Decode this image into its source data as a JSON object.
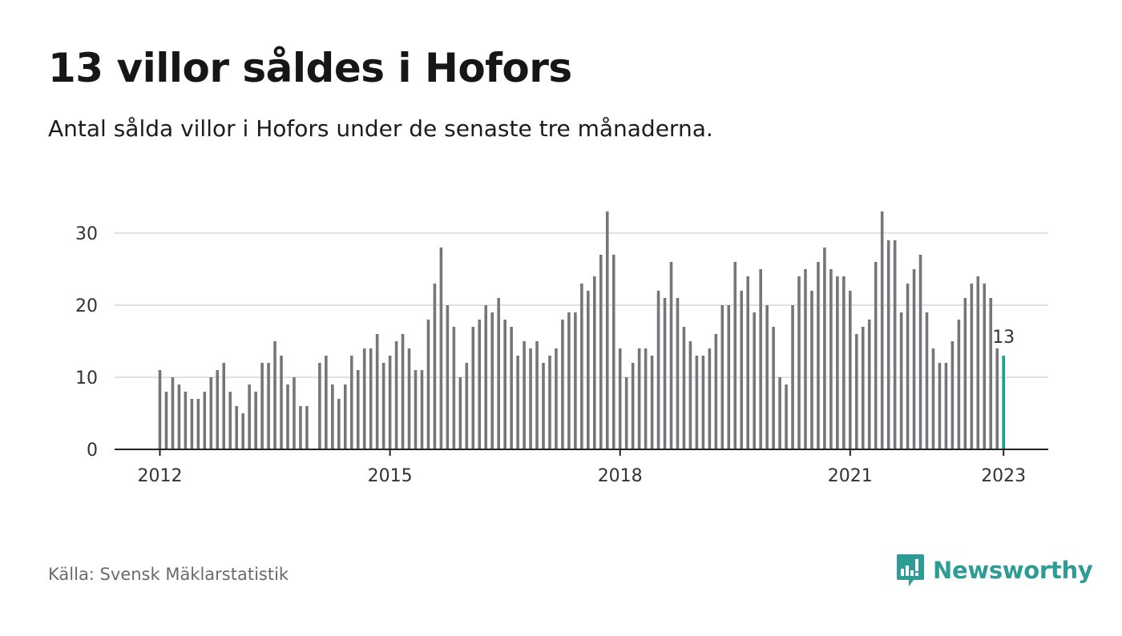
{
  "header": {
    "title": "13 villor såldes i Hofors",
    "subtitle": "Antal sålda villor i Hofors under de senaste tre månaderna."
  },
  "footer": {
    "source": "Källa: Svensk Mäklarstatistik",
    "brand": "Newsworthy",
    "brand_icon": "bar-chart-speech-bubble-icon"
  },
  "colors": {
    "bar": "#75757a",
    "highlight": "#1f9e8f",
    "grid": "#d9d9d9",
    "axis": "#222222",
    "brand": "#2e9c94"
  },
  "chart_data": {
    "type": "bar",
    "title": "13 villor såldes i Hofors",
    "subtitle": "Antal sålda villor i Hofors under de senaste tre månaderna.",
    "xlabel": "",
    "ylabel": "",
    "ylim": [
      0,
      33
    ],
    "yticks": [
      0,
      10,
      20,
      30
    ],
    "xtick_labels": [
      "2012",
      "2015",
      "2018",
      "2021",
      "2023"
    ],
    "xtick_years": [
      2012,
      2015,
      2018,
      2021,
      2023
    ],
    "start": "2012-01",
    "end": "2023-01",
    "grid": true,
    "annotation": {
      "label": "13",
      "month": "2023-01",
      "value": 13
    },
    "series": [
      {
        "values": [
          11,
          8,
          10,
          9,
          8,
          7,
          7,
          8,
          10,
          11,
          12,
          8,
          6,
          5,
          9,
          8,
          12,
          12,
          15,
          13,
          9,
          10,
          6,
          6,
          0,
          12,
          13,
          9,
          7,
          9,
          13,
          11,
          14,
          14,
          16,
          12,
          13,
          15,
          16,
          14,
          11,
          11,
          18,
          23,
          28,
          20,
          17,
          10,
          12,
          17,
          18,
          20,
          19,
          21,
          18,
          17,
          13,
          15,
          14,
          15,
          12,
          13,
          14,
          18,
          19,
          19,
          23,
          22,
          24,
          27,
          33,
          27,
          14,
          10,
          12,
          14,
          14,
          13,
          22,
          21,
          26,
          21,
          17,
          15,
          13,
          13,
          14,
          16,
          20,
          20,
          26,
          22,
          24,
          19,
          25,
          20,
          17,
          10,
          9,
          20,
          24,
          25,
          22,
          26,
          28,
          25,
          24,
          24,
          22,
          16,
          17,
          18,
          26,
          33,
          29,
          29,
          19,
          23,
          25,
          27,
          19,
          14,
          12,
          12,
          15,
          18,
          21,
          23,
          24,
          23,
          21,
          14,
          13
        ]
      }
    ]
  }
}
